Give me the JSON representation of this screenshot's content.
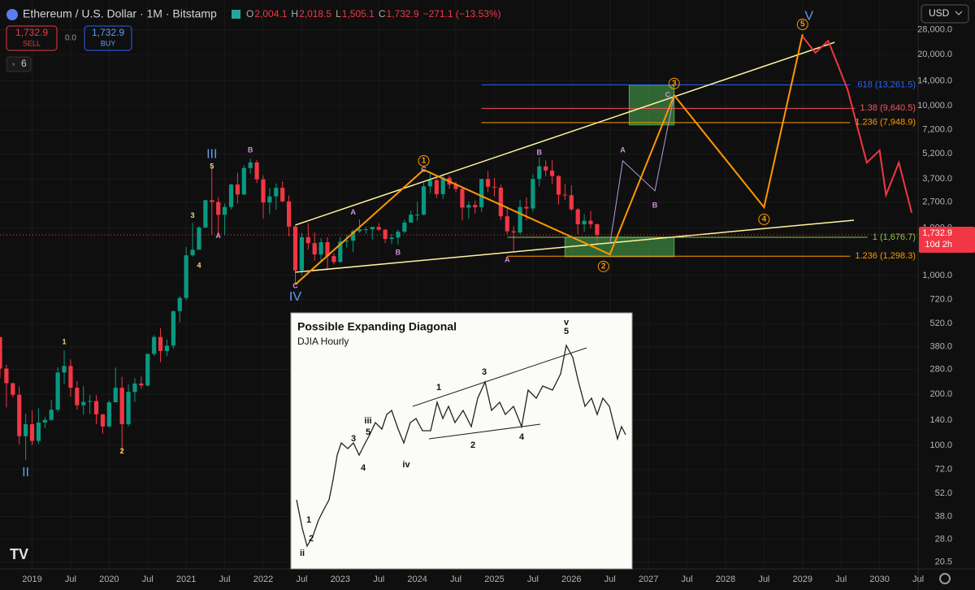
{
  "header": {
    "title": "Ethereum / U.S. Dollar · 1M · Bitstamp",
    "legend": [
      {
        "label": "O",
        "value": "2,004.1"
      },
      {
        "label": "H",
        "value": "2,018.5"
      },
      {
        "label": "L",
        "value": "1,505.1"
      },
      {
        "label": "C",
        "value": "1,732.9"
      }
    ],
    "change": "−271.1 (−13.53%)",
    "sell_price": "1,732.9",
    "sell_label": "SELL",
    "spread": "0.0",
    "buy_price": "1,732.9",
    "buy_label": "BUY",
    "indicator_count": "6",
    "currency": "USD"
  },
  "chart_data": {
    "type": "candlestick",
    "title": "Ethereum / U.S. Dollar · 1M · Bitstamp",
    "x": [
      "2018-08",
      "2018-09",
      "2018-10",
      "2018-11",
      "2018-12",
      "2019-01",
      "2019-02",
      "2019-03",
      "2019-04",
      "2019-05",
      "2019-06",
      "2019-07",
      "2019-08",
      "2019-09",
      "2019-10",
      "2019-11",
      "2019-12",
      "2020-01",
      "2020-02",
      "2020-03",
      "2020-04",
      "2020-05",
      "2020-06",
      "2020-07",
      "2020-08",
      "2020-09",
      "2020-10",
      "2020-11",
      "2020-12",
      "2021-01",
      "2021-02",
      "2021-03",
      "2021-04",
      "2021-05",
      "2021-06",
      "2021-07",
      "2021-08",
      "2021-09",
      "2021-10",
      "2021-11",
      "2021-12",
      "2022-01",
      "2022-02",
      "2022-03",
      "2022-04",
      "2022-05",
      "2022-06",
      "2022-07",
      "2022-08",
      "2022-09",
      "2022-10",
      "2022-11",
      "2022-12",
      "2023-01",
      "2023-02",
      "2023-03",
      "2023-04",
      "2023-05",
      "2023-06",
      "2023-07",
      "2023-08",
      "2023-09",
      "2023-10",
      "2023-11",
      "2023-12",
      "2024-01",
      "2024-02",
      "2024-03",
      "2024-04",
      "2024-05",
      "2024-06",
      "2024-07",
      "2024-08",
      "2024-09",
      "2024-10",
      "2024-11",
      "2024-12",
      "2025-01",
      "2025-02",
      "2025-03",
      "2025-04",
      "2025-05",
      "2025-06",
      "2025-07",
      "2025-08",
      "2025-09",
      "2025-10",
      "2025-11",
      "2025-12",
      "2026-01",
      "2026-02",
      "2026-03",
      "2026-04",
      "2026-05"
    ],
    "ohlc": [
      [
        433,
        436,
        250,
        283
      ],
      [
        283,
        298,
        167,
        232
      ],
      [
        232,
        233,
        191,
        198
      ],
      [
        198,
        222,
        101,
        113
      ],
      [
        113,
        153,
        82,
        133
      ],
      [
        133,
        161,
        100,
        106
      ],
      [
        106,
        165,
        102,
        136
      ],
      [
        136,
        147,
        126,
        141
      ],
      [
        141,
        185,
        140,
        162
      ],
      [
        162,
        288,
        157,
        268
      ],
      [
        268,
        362,
        230,
        293
      ],
      [
        293,
        320,
        193,
        218
      ],
      [
        218,
        239,
        162,
        172
      ],
      [
        172,
        223,
        151,
        180
      ],
      [
        180,
        198,
        153,
        182
      ],
      [
        182,
        197,
        133,
        152
      ],
      [
        152,
        153,
        117,
        129
      ],
      [
        129,
        184,
        127,
        179
      ],
      [
        179,
        287,
        180,
        218
      ],
      [
        218,
        253,
        90,
        133
      ],
      [
        133,
        228,
        129,
        206
      ],
      [
        206,
        249,
        180,
        231
      ],
      [
        231,
        254,
        215,
        225
      ],
      [
        225,
        346,
        222,
        345
      ],
      [
        345,
        445,
        335,
        434
      ],
      [
        434,
        488,
        308,
        359
      ],
      [
        359,
        420,
        334,
        386
      ],
      [
        386,
        620,
        370,
        616
      ],
      [
        616,
        755,
        530,
        737
      ],
      [
        737,
        1470,
        715,
        1314
      ],
      [
        1314,
        2040,
        1290,
        1417
      ],
      [
        1417,
        1950,
        1440,
        1917
      ],
      [
        1917,
        2790,
        1900,
        2773
      ],
      [
        2773,
        4380,
        1730,
        2707
      ],
      [
        2707,
        2890,
        1700,
        2275
      ],
      [
        2275,
        2650,
        1720,
        2530
      ],
      [
        2530,
        3470,
        2450,
        3430
      ],
      [
        3430,
        4030,
        2650,
        3000
      ],
      [
        3000,
        4460,
        2970,
        4290
      ],
      [
        4290,
        4870,
        3980,
        4630
      ],
      [
        4630,
        4780,
        3500,
        3680
      ],
      [
        3680,
        3900,
        2160,
        2690
      ],
      [
        2690,
        3280,
        2300,
        2920
      ],
      [
        2920,
        3480,
        2440,
        3280
      ],
      [
        3280,
        3580,
        2700,
        2730
      ],
      [
        2730,
        2960,
        1700,
        1940
      ],
      [
        1940,
        1970,
        880,
        1070
      ],
      [
        1070,
        1780,
        1000,
        1680
      ],
      [
        1680,
        2030,
        1420,
        1550
      ],
      [
        1550,
        1790,
        1220,
        1330
      ],
      [
        1330,
        1660,
        1190,
        1570
      ],
      [
        1570,
        1680,
        1070,
        1300
      ],
      [
        1300,
        1350,
        1160,
        1200
      ],
      [
        1200,
        1680,
        1190,
        1580
      ],
      [
        1580,
        1740,
        1460,
        1600
      ],
      [
        1600,
        1860,
        1370,
        1820
      ],
      [
        1820,
        2140,
        1780,
        1870
      ],
      [
        1870,
        1930,
        1760,
        1870
      ],
      [
        1870,
        1930,
        1630,
        1930
      ],
      [
        1930,
        2030,
        1830,
        1860
      ],
      [
        1860,
        1870,
        1550,
        1640
      ],
      [
        1640,
        1750,
        1530,
        1670
      ],
      [
        1670,
        1860,
        1520,
        1810
      ],
      [
        1810,
        2130,
        1770,
        2050
      ],
      [
        2050,
        2410,
        2040,
        2280
      ],
      [
        2280,
        2720,
        2100,
        2280
      ],
      [
        2280,
        3520,
        2260,
        3350
      ],
      [
        3350,
        4090,
        3050,
        3640
      ],
      [
        3640,
        3740,
        2860,
        3010
      ],
      [
        3010,
        3970,
        2820,
        3760
      ],
      [
        3760,
        3880,
        3240,
        3430
      ],
      [
        3430,
        3560,
        3080,
        3230
      ],
      [
        3230,
        3280,
        2110,
        2510
      ],
      [
        2510,
        2720,
        2150,
        2600
      ],
      [
        2600,
        2770,
        2310,
        2520
      ],
      [
        2520,
        3700,
        2360,
        3700
      ],
      [
        3700,
        4110,
        3100,
        3330
      ],
      [
        3330,
        3750,
        2920,
        3290
      ],
      [
        3290,
        3430,
        2120,
        2230
      ],
      [
        2230,
        2550,
        1750,
        1820
      ],
      [
        1820,
        1950,
        1385,
        1790
      ],
      [
        1790,
        2790,
        1750,
        2530
      ],
      [
        2530,
        2880,
        2110,
        2480
      ],
      [
        2480,
        3940,
        2370,
        3700
      ],
      [
        3700,
        4950,
        3350,
        4390
      ],
      [
        4390,
        4770,
        3830,
        4150
      ],
      [
        4150,
        4760,
        3450,
        3850
      ],
      [
        3850,
        3900,
        2620,
        2990
      ],
      [
        2990,
        3450,
        2780,
        2970
      ],
      [
        2970,
        3400,
        2400,
        2450
      ],
      [
        2450,
        2500,
        1750,
        2000
      ],
      [
        2000,
        2300,
        1800,
        2100
      ],
      [
        2100,
        2400,
        1900,
        2004.1
      ],
      [
        2004.1,
        2018.5,
        1505.1,
        1732.9
      ]
    ],
    "up_color": "#089981",
    "down_color": "#f23645",
    "xlim": [
      "2018-08",
      "2030-07"
    ],
    "xticks": [
      {
        "value": "2019-01",
        "label": "2019"
      },
      {
        "value": "2019-07",
        "label": "Jul"
      },
      {
        "value": "2020-01",
        "label": "2020"
      },
      {
        "value": "2020-07",
        "label": "Jul"
      },
      {
        "value": "2021-01",
        "label": "2021"
      },
      {
        "value": "2021-07",
        "label": "Jul"
      },
      {
        "value": "2022-01",
        "label": "2022"
      },
      {
        "value": "2022-07",
        "label": "Jul"
      },
      {
        "value": "2023-01",
        "label": "2023"
      },
      {
        "value": "2023-07",
        "label": "Jul"
      },
      {
        "value": "2024-01",
        "label": "2024"
      },
      {
        "value": "2024-07",
        "label": "Jul"
      },
      {
        "value": "2025-01",
        "label": "2025"
      },
      {
        "value": "2025-07",
        "label": "Jul"
      },
      {
        "value": "2026-01",
        "label": "2026"
      },
      {
        "value": "2026-07",
        "label": "Jul"
      },
      {
        "value": "2027-01",
        "label": "2027"
      },
      {
        "value": "2027-07",
        "label": "Jul"
      },
      {
        "value": "2028-01",
        "label": "2028"
      },
      {
        "value": "2028-07",
        "label": "Jul"
      },
      {
        "value": "2029-01",
        "label": "2029"
      },
      {
        "value": "2029-07",
        "label": "Jul"
      },
      {
        "value": "2030-01",
        "label": "2030"
      },
      {
        "value": "2030-07",
        "label": "Jul"
      }
    ],
    "ylim": [
      18.7,
      41900
    ],
    "log_scale": true,
    "grid": true,
    "yticks": [
      {
        "value": 20.5,
        "label": "20.5"
      },
      {
        "value": 28,
        "label": "28.0"
      },
      {
        "value": 38,
        "label": "38.0"
      },
      {
        "value": 52,
        "label": "52.0"
      },
      {
        "value": 72,
        "label": "72.0"
      },
      {
        "value": 100,
        "label": "100.0"
      },
      {
        "value": 140,
        "label": "140.0"
      },
      {
        "value": 200,
        "label": "200.0"
      },
      {
        "value": 280,
        "label": "280.0"
      },
      {
        "value": 380,
        "label": "380.0"
      },
      {
        "value": 520,
        "label": "520.0"
      },
      {
        "value": 720,
        "label": "720.0"
      },
      {
        "value": 1000,
        "label": "1,000.0"
      },
      {
        "value": 1900,
        "label": "1,900.0"
      },
      {
        "value": 2700,
        "label": "2,700.0"
      },
      {
        "value": 3700,
        "label": "3,700.0"
      },
      {
        "value": 5200,
        "label": "5,200.0"
      },
      {
        "value": 7200,
        "label": "7,200.0"
      },
      {
        "value": 10000,
        "label": "10,000.0"
      },
      {
        "value": 14000,
        "label": "14,000.0"
      },
      {
        "value": 20000,
        "label": "20,000.0"
      },
      {
        "value": 28000,
        "label": "28,000.0"
      }
    ],
    "last_price": {
      "value": 1732.9,
      "label": "1,732.9",
      "countdown": "10d 2h",
      "color": "#f23645"
    },
    "fib_levels": [
      {
        "value": 13261.5,
        "label": ".618 (13,261.5)",
        "color": "#2962ff",
        "from": "2024-11"
      },
      {
        "value": 9640.5,
        "label": "1.38 (9,640.5)",
        "color": "#f7525f",
        "from": "2024-11"
      },
      {
        "value": 7948.9,
        "label": "1.236 (7,948.9)",
        "color": "#ff9800",
        "from": "2024-11"
      },
      {
        "value": 1676.7,
        "label": "1 (1,676.7)",
        "color": "#8bc34a",
        "from": "2025-03"
      },
      {
        "value": 1298.3,
        "label": "1.236 (1,298.3)",
        "color": "#ff9800",
        "from": "2025-03"
      }
    ],
    "zones": [
      {
        "x": [
          "2026-10",
          "2027-05"
        ],
        "y": [
          7700,
          13200
        ]
      },
      {
        "x": [
          "2025-12",
          "2027-05"
        ],
        "y": [
          1290,
          1680
        ]
      }
    ],
    "paths": [
      {
        "color": "#fff59d",
        "width": 1.5,
        "points": [
          [
            "2022-06",
            1980
          ],
          [
            "2029-06",
            23600
          ]
        ]
      },
      {
        "color": "#fff59d",
        "width": 1.5,
        "points": [
          [
            "2022-06",
            1045
          ],
          [
            "2029-09",
            2115
          ]
        ]
      },
      {
        "color": "#ff9800",
        "width": 2,
        "points": [
          [
            "2022-06",
            885
          ],
          [
            "2024-02",
            4190
          ],
          [
            "2026-07",
            1330
          ],
          [
            "2027-05",
            11500
          ],
          [
            "2028-07",
            2520
          ],
          [
            "2029-01",
            26300
          ]
        ]
      },
      {
        "color": "#b39ddb",
        "width": 1,
        "points": [
          [
            "2026-07",
            1535
          ],
          [
            "2026-09",
            4730
          ],
          [
            "2027-02",
            3150
          ],
          [
            "2027-05",
            11500
          ]
        ]
      },
      {
        "color": "#f23645",
        "width": 2,
        "points": [
          [
            "2029-01",
            25500
          ],
          [
            "2029-03",
            20500
          ],
          [
            "2029-05",
            24100
          ],
          [
            "2029-08",
            12500
          ],
          [
            "2029-11",
            4620
          ],
          [
            "2030-01",
            5450
          ],
          [
            "2030-02",
            2980
          ],
          [
            "2030-04",
            4620
          ],
          [
            "2030-06",
            2340
          ]
        ]
      }
    ],
    "wave_labels": [
      {
        "text": "III",
        "x": "2021-05",
        "y": 5160,
        "color": "#5b9cf6",
        "circled": false
      },
      {
        "text": "5",
        "x": "2021-05",
        "y": 4380,
        "color": "#f5d76e",
        "circled": false
      },
      {
        "text": "B",
        "x": "2021-11",
        "y": 5450,
        "color": "#ce93d8",
        "circled": false
      },
      {
        "text": "3",
        "x": "2021-02",
        "y": 2240,
        "color": "#f5d76e",
        "circled": false
      },
      {
        "text": "A",
        "x": "2021-06",
        "y": 1700,
        "color": "#ce93d8",
        "circled": false
      },
      {
        "text": "4",
        "x": "2021-03",
        "y": 1140,
        "color": "#f5d76e",
        "circled": false
      },
      {
        "text": "C",
        "x": "2022-06",
        "y": 867,
        "color": "#ce93d8",
        "circled": false
      },
      {
        "text": "IV",
        "x": "2022-06",
        "y": 743,
        "color": "#5b9cf6",
        "circled": false
      },
      {
        "text": "A",
        "x": "2023-03",
        "y": 2340,
        "color": "#ce93d8",
        "circled": false
      },
      {
        "text": "B",
        "x": "2023-10",
        "y": 1360,
        "color": "#ce93d8",
        "circled": false
      },
      {
        "text": "1",
        "x": "2024-02",
        "y": 4730,
        "color": "#ff9800",
        "circled": true
      },
      {
        "text": "C",
        "x": "2024-02",
        "y": 4190,
        "color": "#ce93d8",
        "circled": false
      },
      {
        "text": "B",
        "x": "2025-08",
        "y": 5280,
        "color": "#ce93d8",
        "circled": false
      },
      {
        "text": "A",
        "x": "2025-03",
        "y": 1230,
        "color": "#ce93d8",
        "circled": false
      },
      {
        "text": "2",
        "x": "2026-06",
        "y": 1130,
        "color": "#ff9800",
        "circled": true
      },
      {
        "text": "3",
        "x": "2027-05",
        "y": 13500,
        "color": "#ff9800",
        "circled": true
      },
      {
        "text": "C",
        "x": "2027-04",
        "y": 11500,
        "color": "#ce93d8",
        "circled": false
      },
      {
        "text": "A",
        "x": "2026-09",
        "y": 5450,
        "color": "#ce93d8",
        "circled": false
      },
      {
        "text": "B",
        "x": "2027-02",
        "y": 2580,
        "color": "#ce93d8",
        "circled": false
      },
      {
        "text": "4",
        "x": "2028-07",
        "y": 2140,
        "color": "#ff9800",
        "circled": true
      },
      {
        "text": "5",
        "x": "2029-01",
        "y": 30100,
        "color": "#ff9800",
        "circled": true
      },
      {
        "text": "V",
        "x": "2029-02",
        "y": 33600,
        "color": "#5b9cf6",
        "circled": false
      },
      {
        "text": "1",
        "x": "2019-06",
        "y": 405,
        "color": "#f5d76e",
        "circled": false
      },
      {
        "text": "2",
        "x": "2020-03",
        "y": 91.6,
        "color": "#f5d76e",
        "circled": false
      },
      {
        "text": "II",
        "x": "2018-12",
        "y": 68.7,
        "color": "#5b9cf6",
        "circled": false
      }
    ]
  },
  "inset": {
    "title": "Possible Expanding Diagonal",
    "subtitle": "DJIA Hourly",
    "labels": [
      "1",
      "2",
      "ii",
      "3",
      "4",
      "iii",
      "5",
      "iv",
      "1",
      "2",
      "3",
      "4",
      "5",
      "v"
    ]
  }
}
